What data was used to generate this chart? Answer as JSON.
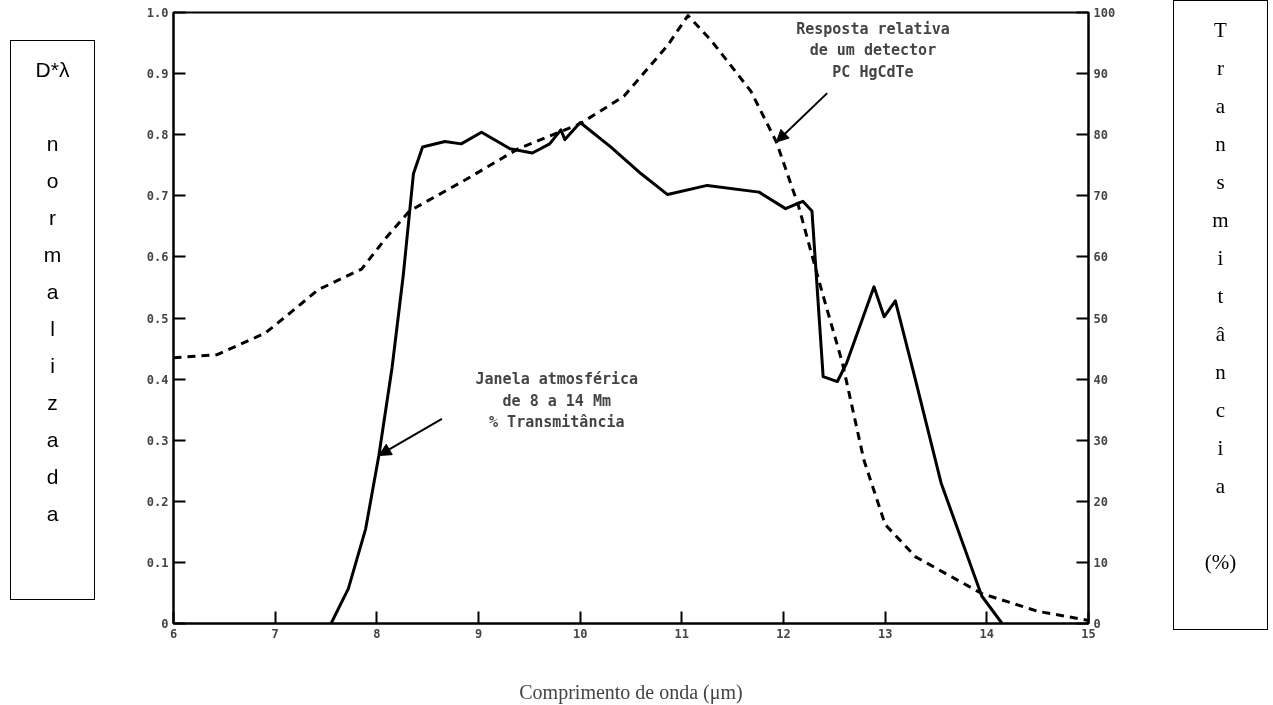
{
  "chart_data": {
    "type": "line",
    "xlabel": "Comprimento de onda (μm)",
    "ylabel": "D*λ normalizada",
    "y2label": "Transmitância (%)",
    "xlim": [
      6,
      15
    ],
    "ylim": [
      0,
      1
    ],
    "y2lim": [
      0,
      100
    ],
    "xticks": [
      6,
      7,
      8,
      9,
      10,
      11,
      12,
      13,
      14,
      15
    ],
    "yticks": [
      0,
      0.1,
      0.2,
      0.3,
      0.4,
      0.5,
      0.6,
      0.7,
      0.8,
      0.9,
      {
        "value": 1,
        "label": "1.0"
      }
    ],
    "y2ticks": [
      0,
      10,
      20,
      30,
      40,
      50,
      60,
      70,
      80,
      90,
      100
    ],
    "series": [
      {
        "color": "#000000",
        "line_style": "dashed",
        "x": [
          6.0,
          6.43,
          6.9,
          7.16,
          7.42,
          7.85,
          8.1,
          8.32,
          8.88,
          9.39,
          10.0,
          10.43,
          10.86,
          11.06,
          11.29,
          11.68,
          11.93,
          12.15,
          12.36,
          12.58,
          12.79,
          13.0,
          13.3,
          13.95,
          14.5,
          15.0
        ],
        "values": [
          0.435,
          0.44,
          0.475,
          0.51,
          0.546,
          0.58,
          0.633,
          0.675,
          0.727,
          0.777,
          0.818,
          0.863,
          0.946,
          0.995,
          0.954,
          0.871,
          0.788,
          0.682,
          0.554,
          0.426,
          0.268,
          0.162,
          0.109,
          0.049,
          0.02,
          0.005
        ]
      },
      {
        "color": "#000000",
        "line_style": "solid",
        "axis": "y2",
        "x": [
          7.55,
          7.72,
          7.89,
          8.02,
          8.15,
          8.26,
          8.36,
          8.45,
          8.67,
          8.83,
          9.03,
          9.31,
          9.53,
          9.7,
          9.81,
          9.85,
          10.0,
          10.3,
          10.6,
          10.86,
          11.25,
          11.76,
          12.02,
          12.19,
          12.28,
          12.39,
          12.53,
          12.62,
          12.89,
          12.99,
          13.1,
          13.29,
          13.55,
          13.95,
          14.15
        ],
        "values": [
          0,
          5.7,
          15.5,
          27.5,
          41.9,
          57,
          73.6,
          78,
          78.9,
          78.5,
          80.4,
          77.7,
          77,
          78.5,
          80.8,
          79.2,
          82,
          78,
          73.6,
          70.2,
          71.7,
          70.6,
          67.9,
          69.1,
          67.5,
          40.4,
          39.6,
          42.6,
          55.1,
          50.2,
          52.8,
          40.4,
          23,
          4.5,
          0
        ]
      }
    ],
    "annotations": [
      {
        "text": "Resposta relativa\nde um detector\nPC HgCdTe",
        "x": 11.93,
        "y": 0.788
      },
      "Janela atmosférica\nde 8 a 14 Mm\n% Transmitância"
    ]
  }
}
